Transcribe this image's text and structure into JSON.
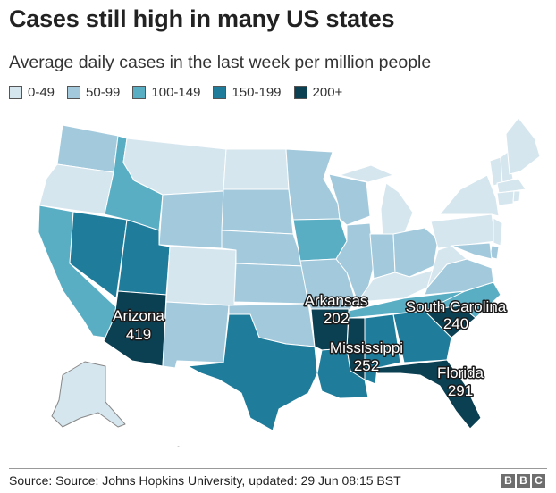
{
  "header": {
    "title": "Cases still high in many US states",
    "subtitle": "Average daily cases in the last week per million people"
  },
  "legend": [
    {
      "label": "0-49",
      "color": "#d6e6ee"
    },
    {
      "label": "50-99",
      "color": "#a3cadc"
    },
    {
      "label": "100-149",
      "color": "#5aaec4"
    },
    {
      "label": "150-199",
      "color": "#1f7d9b"
    },
    {
      "label": "200+",
      "color": "#0b3f52"
    }
  ],
  "colors": {
    "border": "#ffffff",
    "outline": "#888888"
  },
  "labels": [
    {
      "name": "Arizona",
      "value": "419"
    },
    {
      "name": "Arkansas",
      "value": "202"
    },
    {
      "name": "South Carolina",
      "value": "240"
    },
    {
      "name": "Mississippi",
      "value": "252"
    },
    {
      "name": "Florida",
      "value": "291"
    }
  ],
  "footer": {
    "source": "Source: Source: Johns Hopkins University, updated: 29 Jun 08:15 BST",
    "brand_letters": [
      "B",
      "B",
      "C"
    ]
  },
  "map_data": {
    "type": "choropleth",
    "region": "United States",
    "metric": "Average daily cases in the last week per million people",
    "states": {
      "WA": "50-99",
      "OR": "0-49",
      "CA": "100-149",
      "NV": "150-199",
      "ID": "100-149",
      "MT": "0-49",
      "WY": "50-99",
      "UT": "150-199",
      "AZ": "200+",
      "CO": "0-49",
      "NM": "50-99",
      "ND": "0-49",
      "SD": "50-99",
      "NE": "50-99",
      "KS": "50-99",
      "OK": "50-99",
      "TX": "150-199",
      "MN": "50-99",
      "IA": "100-149",
      "MO": "50-99",
      "AR": "200+",
      "LA": "150-199",
      "WI": "50-99",
      "IL": "50-99",
      "MI": "0-49",
      "IN": "50-99",
      "OH": "50-99",
      "KY": "0-49",
      "TN": "100-149",
      "MS": "200+",
      "AL": "150-199",
      "GA": "150-199",
      "FL": "200+",
      "SC": "200+",
      "NC": "100-149",
      "VA": "50-99",
      "WV": "0-49",
      "PA": "0-49",
      "NY": "0-49",
      "VT": "0-49",
      "NH": "0-49",
      "ME": "0-49",
      "MA": "0-49",
      "CT": "0-49",
      "RI": "0-49",
      "NJ": "0-49",
      "DE": "50-99",
      "MD": "50-99",
      "DC": "50-99",
      "AK": "0-49",
      "HI": "0-49"
    }
  }
}
